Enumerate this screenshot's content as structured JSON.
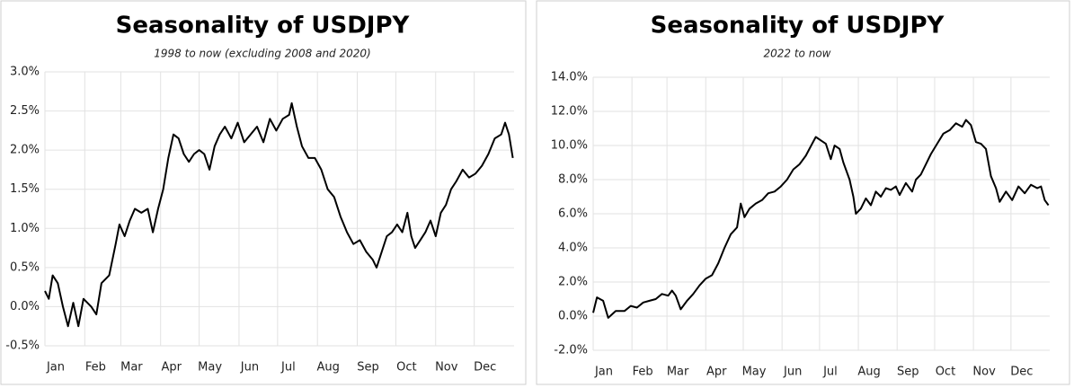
{
  "chart_data": [
    {
      "type": "line",
      "title": "Seasonality of USDJPY",
      "subtitle": "1998 to now (excluding 2008 and 2020)",
      "color": "#000000",
      "grid": true,
      "xlim": [
        0,
        365
      ],
      "xticks": [
        {
          "value": 0,
          "label": "Jan"
        },
        {
          "value": 31,
          "label": "Feb"
        },
        {
          "value": 59,
          "label": "Mar"
        },
        {
          "value": 90,
          "label": "Apr"
        },
        {
          "value": 120,
          "label": "May"
        },
        {
          "value": 151,
          "label": "Jun"
        },
        {
          "value": 181,
          "label": "Jul"
        },
        {
          "value": 212,
          "label": "Aug"
        },
        {
          "value": 243,
          "label": "Sep"
        },
        {
          "value": 273,
          "label": "Oct"
        },
        {
          "value": 304,
          "label": "Nov"
        },
        {
          "value": 334,
          "label": "Dec"
        }
      ],
      "ylim": [
        -0.5,
        3.0
      ],
      "yticks": [
        {
          "value": -0.5,
          "label": "-0.5%"
        },
        {
          "value": 0,
          "label": "0.0%"
        },
        {
          "value": 0.5,
          "label": "0.5%"
        },
        {
          "value": 1,
          "label": "1.0%"
        },
        {
          "value": 1.5,
          "label": "1.5%"
        },
        {
          "value": 2,
          "label": "2.0%"
        },
        {
          "value": 2.5,
          "label": "2.5%"
        },
        {
          "value": 3,
          "label": "3.0%"
        }
      ],
      "x": [
        0,
        3,
        6,
        10,
        14,
        18,
        22,
        26,
        30,
        36,
        40,
        44,
        50,
        55,
        58,
        62,
        66,
        70,
        75,
        80,
        84,
        88,
        92,
        96,
        100,
        104,
        108,
        112,
        116,
        120,
        124,
        128,
        132,
        136,
        140,
        145,
        150,
        155,
        160,
        165,
        170,
        175,
        180,
        185,
        190,
        192,
        196,
        200,
        205,
        210,
        215,
        220,
        225,
        230,
        235,
        240,
        245,
        250,
        255,
        258,
        262,
        266,
        270,
        274,
        278,
        282,
        285,
        288,
        292,
        296,
        300,
        304,
        308,
        312,
        316,
        320,
        325,
        330,
        335,
        340,
        345,
        350,
        355,
        358,
        361,
        364
      ],
      "values": [
        0.2,
        0.1,
        0.4,
        0.3,
        0.0,
        -0.25,
        0.05,
        -0.25,
        0.1,
        0.0,
        -0.1,
        0.3,
        0.4,
        0.8,
        1.05,
        0.9,
        1.1,
        1.25,
        1.2,
        1.25,
        0.95,
        1.25,
        1.5,
        1.9,
        2.2,
        2.15,
        1.95,
        1.85,
        1.95,
        2.0,
        1.95,
        1.75,
        2.05,
        2.2,
        2.3,
        2.15,
        2.35,
        2.1,
        2.2,
        2.3,
        2.1,
        2.4,
        2.25,
        2.4,
        2.45,
        2.6,
        2.3,
        2.05,
        1.9,
        1.9,
        1.75,
        1.5,
        1.4,
        1.15,
        0.95,
        0.8,
        0.85,
        0.7,
        0.6,
        0.5,
        0.7,
        0.9,
        0.95,
        1.05,
        0.95,
        1.2,
        0.9,
        0.75,
        0.85,
        0.95,
        1.1,
        0.9,
        1.2,
        1.3,
        1.5,
        1.6,
        1.75,
        1.65,
        1.7,
        1.8,
        1.95,
        2.15,
        2.2,
        2.35,
        2.2,
        1.9
      ]
    },
    {
      "type": "line",
      "title": "Seasonality of USDJPY",
      "subtitle": "2022 to now",
      "color": "#000000",
      "grid": true,
      "xlim": [
        0,
        365
      ],
      "xticks": [
        {
          "value": 0,
          "label": "Jan"
        },
        {
          "value": 31,
          "label": "Feb"
        },
        {
          "value": 59,
          "label": "Mar"
        },
        {
          "value": 90,
          "label": "Apr"
        },
        {
          "value": 120,
          "label": "May"
        },
        {
          "value": 151,
          "label": "Jun"
        },
        {
          "value": 181,
          "label": "Jul"
        },
        {
          "value": 212,
          "label": "Aug"
        },
        {
          "value": 243,
          "label": "Sep"
        },
        {
          "value": 273,
          "label": "Oct"
        },
        {
          "value": 304,
          "label": "Nov"
        },
        {
          "value": 334,
          "label": "Dec"
        }
      ],
      "ylim": [
        -2,
        14
      ],
      "yticks": [
        {
          "value": -2,
          "label": "-2.0%"
        },
        {
          "value": 0,
          "label": "0.0%"
        },
        {
          "value": 2,
          "label": "2.0%"
        },
        {
          "value": 4,
          "label": "4.0%"
        },
        {
          "value": 6,
          "label": "6.0%"
        },
        {
          "value": 8,
          "label": "8.0%"
        },
        {
          "value": 10,
          "label": "10.0%"
        },
        {
          "value": 12,
          "label": "12.0%"
        },
        {
          "value": 14,
          "label": "14.0%"
        }
      ],
      "x": [
        0,
        3,
        8,
        12,
        18,
        25,
        30,
        35,
        40,
        45,
        50,
        55,
        60,
        63,
        66,
        70,
        75,
        80,
        85,
        90,
        95,
        100,
        105,
        110,
        115,
        118,
        121,
        125,
        130,
        135,
        140,
        145,
        150,
        155,
        160,
        165,
        170,
        175,
        178,
        182,
        186,
        190,
        193,
        197,
        200,
        205,
        208,
        210,
        214,
        218,
        222,
        226,
        230,
        234,
        238,
        242,
        245,
        250,
        255,
        258,
        262,
        266,
        270,
        275,
        280,
        285,
        290,
        295,
        298,
        302,
        306,
        310,
        314,
        318,
        322,
        325,
        330,
        335,
        340,
        345,
        350,
        355,
        358,
        361,
        364
      ],
      "values": [
        0.2,
        1.1,
        0.9,
        -0.1,
        0.3,
        0.3,
        0.6,
        0.5,
        0.8,
        0.9,
        1.0,
        1.3,
        1.2,
        1.5,
        1.2,
        0.4,
        0.9,
        1.3,
        1.8,
        2.2,
        2.4,
        3.1,
        4.0,
        4.8,
        5.2,
        6.6,
        5.8,
        6.3,
        6.6,
        6.8,
        7.2,
        7.3,
        7.6,
        8.0,
        8.6,
        8.9,
        9.4,
        10.1,
        10.5,
        10.3,
        10.1,
        9.2,
        10.0,
        9.8,
        9.0,
        8.0,
        7.0,
        6.0,
        6.3,
        6.9,
        6.5,
        7.3,
        7.0,
        7.5,
        7.4,
        7.6,
        7.1,
        7.8,
        7.3,
        8.0,
        8.3,
        8.9,
        9.5,
        10.1,
        10.7,
        10.9,
        11.3,
        11.1,
        11.5,
        11.2,
        10.2,
        10.1,
        9.8,
        8.2,
        7.5,
        6.7,
        7.3,
        6.8,
        7.6,
        7.2,
        7.7,
        7.5,
        7.6,
        6.8,
        6.5
      ]
    }
  ]
}
